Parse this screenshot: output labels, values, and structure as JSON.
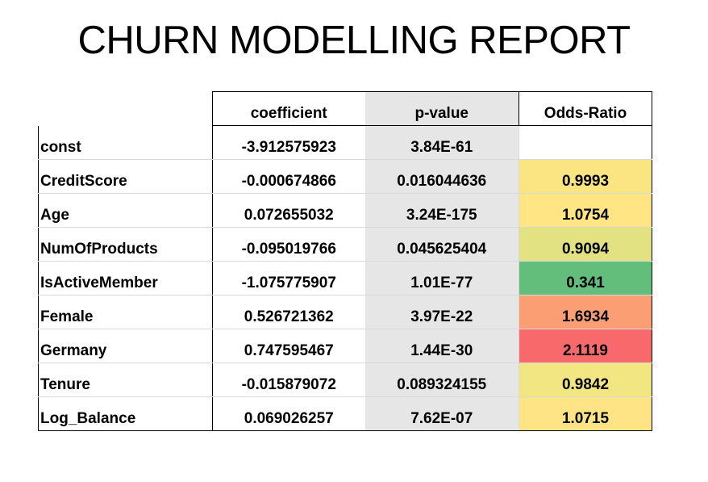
{
  "title": "CHURN MODELLING REPORT",
  "table": {
    "headers": [
      "",
      "coefficient",
      "p-value",
      "Odds-Ratio"
    ],
    "rows": [
      {
        "variable": "const",
        "coefficient": "-3.912575923",
        "p_value": "3.84E-61",
        "odds_ratio": "",
        "odds_color": "#ffffff"
      },
      {
        "variable": "CreditScore",
        "coefficient": "-0.000674866",
        "p_value": "0.016044636",
        "odds_ratio": "0.9993",
        "odds_color": "#fbe583"
      },
      {
        "variable": "Age",
        "coefficient": "0.072655032",
        "p_value": "3.24E-175",
        "odds_ratio": "1.0754",
        "odds_color": "#ffe584"
      },
      {
        "variable": "NumOfProducts",
        "coefficient": "-0.095019766",
        "p_value": "0.045625404",
        "odds_ratio": "0.9094",
        "odds_color": "#e2e283"
      },
      {
        "variable": "IsActiveMember",
        "coefficient": "-1.075775907",
        "p_value": "1.01E-77",
        "odds_ratio": "0.341",
        "odds_color": "#63be7b"
      },
      {
        "variable": "Female",
        "coefficient": "0.526721362",
        "p_value": "3.97E-22",
        "odds_ratio": "1.6934",
        "odds_color": "#fc9e74"
      },
      {
        "variable": "Germany",
        "coefficient": "0.747595467",
        "p_value": "1.44E-30",
        "odds_ratio": "2.1119",
        "odds_color": "#f8696b"
      },
      {
        "variable": "Tenure",
        "coefficient": "-0.015879072",
        "p_value": "0.089324155",
        "odds_ratio": "0.9842",
        "odds_color": "#f2e683"
      },
      {
        "variable": "Log_Balance",
        "coefficient": "0.069026257",
        "p_value": "7.62E-07",
        "odds_ratio": "1.0715",
        "odds_color": "#fee484"
      }
    ]
  }
}
